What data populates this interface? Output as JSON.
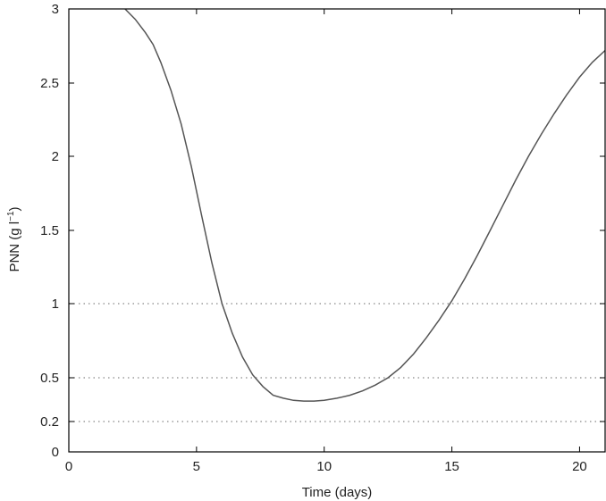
{
  "chart_data": {
    "type": "line",
    "xlabel": "Time (days)",
    "ylabel_main": "PNN (g l",
    "ylabel_sup": "−1",
    "ylabel_close": ")",
    "xlim": [
      0,
      21
    ],
    "ylim": [
      0,
      3
    ],
    "xticks": [
      0,
      5,
      10,
      15,
      20
    ],
    "yticks": [
      0,
      0.2,
      0.5,
      1,
      1.5,
      2,
      2.5,
      3
    ],
    "reference_lines": [
      0.2,
      0.5,
      1
    ],
    "grid": false,
    "series": [
      {
        "x": [
          2.2,
          2.6,
          3.0,
          3.3,
          3.6,
          4.0,
          4.4,
          4.8,
          5.2,
          5.6,
          6.0,
          6.4,
          6.8,
          7.2,
          7.6,
          8.0,
          8.4,
          8.8,
          9.2,
          9.6,
          10.0,
          10.5,
          11.0,
          11.5,
          12.0,
          12.5,
          13.0,
          13.5,
          14.0,
          14.5,
          15.0,
          15.5,
          16.0,
          16.5,
          17.0,
          17.5,
          18.0,
          18.5,
          19.0,
          19.5,
          20.0,
          20.5,
          21.0
        ],
        "y": [
          3.0,
          2.93,
          2.84,
          2.76,
          2.64,
          2.45,
          2.22,
          1.93,
          1.6,
          1.28,
          1.0,
          0.8,
          0.64,
          0.52,
          0.44,
          0.38,
          0.36,
          0.345,
          0.34,
          0.34,
          0.345,
          0.36,
          0.38,
          0.41,
          0.45,
          0.5,
          0.57,
          0.66,
          0.77,
          0.89,
          1.02,
          1.17,
          1.33,
          1.5,
          1.67,
          1.84,
          2.0,
          2.15,
          2.29,
          2.42,
          2.54,
          2.64,
          2.72
        ]
      }
    ]
  }
}
